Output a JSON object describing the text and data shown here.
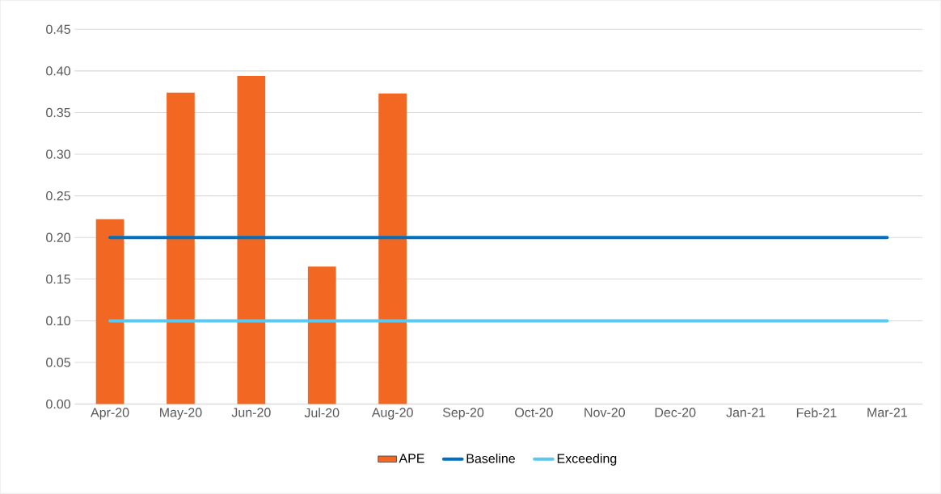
{
  "chart_data": {
    "type": "bar",
    "categories": [
      "Apr-20",
      "May-20",
      "Jun-20",
      "Jul-20",
      "Aug-20",
      "Sep-20",
      "Oct-20",
      "Nov-20",
      "Dec-20",
      "Jan-21",
      "Feb-21",
      "Mar-21"
    ],
    "series": [
      {
        "name": "APE",
        "type": "bar",
        "color": "#f26722",
        "values": [
          0.222,
          0.374,
          0.394,
          0.165,
          0.373,
          null,
          null,
          null,
          null,
          null,
          null,
          null
        ]
      },
      {
        "name": "Baseline",
        "type": "line",
        "color": "#0070c0",
        "values": [
          0.2,
          0.2,
          0.2,
          0.2,
          0.2,
          0.2,
          0.2,
          0.2,
          0.2,
          0.2,
          0.2,
          0.2
        ]
      },
      {
        "name": "Exceeding",
        "type": "line",
        "color": "#5bc8f0",
        "values": [
          0.1,
          0.1,
          0.1,
          0.1,
          0.1,
          0.1,
          0.1,
          0.1,
          0.1,
          0.1,
          0.1,
          0.1
        ]
      }
    ],
    "ylim": [
      0,
      0.45
    ],
    "yticks": [
      {
        "value": 0,
        "label": "0.00"
      },
      {
        "value": 0.05,
        "label": "0.05"
      },
      {
        "value": 0.1,
        "label": "0.10"
      },
      {
        "value": 0.15,
        "label": "0.15"
      },
      {
        "value": 0.2,
        "label": "0.20"
      },
      {
        "value": 0.25,
        "label": "0.25"
      },
      {
        "value": 0.3,
        "label": "0.30"
      },
      {
        "value": 0.35,
        "label": "0.35"
      },
      {
        "value": 0.4,
        "label": "0.40"
      },
      {
        "value": 0.45,
        "label": "0.45"
      }
    ],
    "grid": "y",
    "legend": "bottom"
  }
}
